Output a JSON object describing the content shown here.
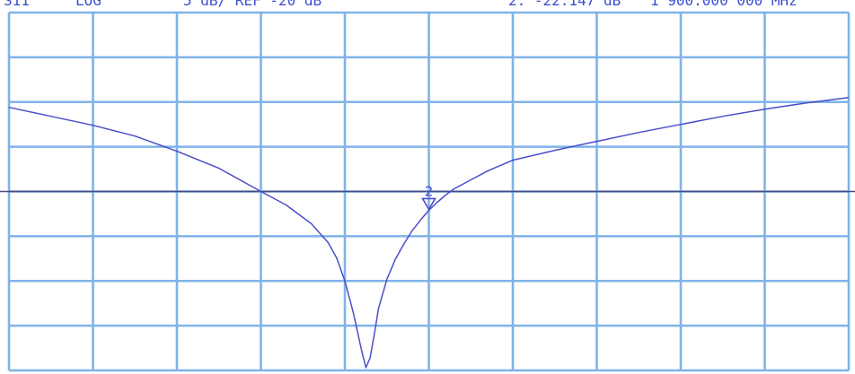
{
  "header": {
    "param": "S11",
    "format": "LOG",
    "scale_ref": "5 dB/ REF -20 dB",
    "marker_readout": "2: -22.147 dB",
    "marker_freq": "1 900.000 000 MHz"
  },
  "colors": {
    "grid": "#7fb3ea",
    "trace": "#4a4fc8",
    "reference_line": "#4a4a80",
    "text": "#3a4fd0"
  },
  "chart_data": {
    "type": "line",
    "title": "",
    "xlabel": "",
    "ylabel": "",
    "x_divisions": 10,
    "y_divisions": 8,
    "y_per_division_db": 5,
    "reference_level_db": -20,
    "ylim": [
      -40,
      0
    ],
    "xlim": [
      0,
      10
    ],
    "reference_line_db": -20,
    "grid": true,
    "series": [
      {
        "x": [
          0.0,
          0.5,
          1.0,
          1.5,
          2.0,
          2.5,
          3.0,
          3.3,
          3.6,
          3.8,
          3.9,
          4.0,
          4.1,
          4.2,
          4.25,
          4.3,
          4.35,
          4.4,
          4.5,
          4.6,
          4.7,
          4.8,
          4.9,
          5.0,
          5.1,
          5.2,
          5.3,
          5.5,
          5.7,
          6.0,
          6.5,
          7.0,
          7.5,
          8.0,
          8.5,
          9.0,
          9.5,
          10.0
        ],
        "y": [
          -10.6,
          -11.6,
          -12.6,
          -13.8,
          -15.5,
          -17.4,
          -20.0,
          -21.5,
          -23.6,
          -25.7,
          -27.4,
          -30.0,
          -33.5,
          -37.8,
          -39.7,
          -38.6,
          -36.0,
          -33.1,
          -29.8,
          -27.6,
          -25.9,
          -24.4,
          -23.2,
          -22.1,
          -21.2,
          -20.4,
          -19.7,
          -18.7,
          -17.7,
          -16.5,
          -15.4,
          -14.4,
          -13.4,
          -12.5,
          -11.6,
          -10.8,
          -10.1,
          -9.5
        ]
      }
    ],
    "markers": [
      {
        "label": "2",
        "x": 5.0,
        "y": -22.1
      }
    ]
  }
}
